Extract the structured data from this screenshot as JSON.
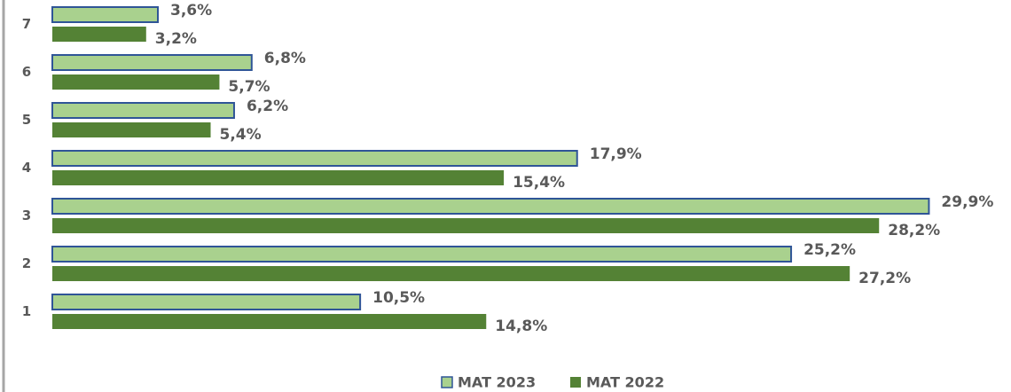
{
  "chart_data": {
    "type": "bar",
    "orientation": "horizontal",
    "categories": [
      "1",
      "2",
      "3",
      "4",
      "5",
      "6",
      "7"
    ],
    "series": [
      {
        "name": "MAT 2023",
        "color": "#a9d18e",
        "edge_color": "#2f5597",
        "values": [
          10.5,
          25.2,
          29.9,
          17.9,
          6.2,
          6.8,
          3.6
        ],
        "value_labels": [
          "10,5%",
          "25,2%",
          "29,9%",
          "17,9%",
          "6,2%",
          "6,8%",
          "3,6%"
        ]
      },
      {
        "name": "MAT 2022",
        "color": "#548235",
        "values": [
          14.8,
          27.2,
          28.2,
          15.4,
          5.4,
          5.7,
          3.2
        ],
        "value_labels": [
          "14,8%",
          "27,2%",
          "28,2%",
          "15,4%",
          "5,4%",
          "5,7%",
          "3,2%"
        ]
      }
    ],
    "xlim": [
      0,
      32.7
    ],
    "legend": "bottom"
  }
}
